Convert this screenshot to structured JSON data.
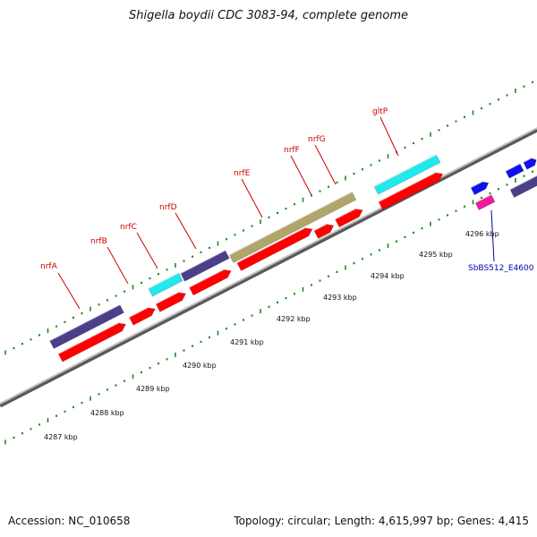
{
  "title": "Shigella boydii CDC 3083-94, complete genome",
  "footer": {
    "accession": "Accession: NC_010658",
    "summary": "Topology: circular; Length: 4,615,997 bp; Genes: 4,415"
  },
  "colors": {
    "backbone": "#888888",
    "ticks": "#1a8a1a",
    "label_red": "#cc0000",
    "label_blue": "#0000aa",
    "red": "#ff0000",
    "navy": "#4b3f8a",
    "cyan": "#22e8ee",
    "olive": "#b0a56a",
    "blue": "#1010ee",
    "magenta": "#ee1a9e"
  },
  "kbp_ticks": [
    "4287 kbp",
    "4288 kbp",
    "4289 kbp",
    "4290 kbp",
    "4291 kbp",
    "4292 kbp",
    "4293 kbp",
    "4294 kbp",
    "4295 kbp",
    "4296 kbp"
  ],
  "gene_labels": [
    {
      "name": "nrfA",
      "color": "red"
    },
    {
      "name": "nrfB",
      "color": "red"
    },
    {
      "name": "nrfC",
      "color": "red"
    },
    {
      "name": "nrfD",
      "color": "red"
    },
    {
      "name": "nrfE",
      "color": "red"
    },
    {
      "name": "nrfF",
      "color": "red"
    },
    {
      "name": "nrfG",
      "color": "red"
    },
    {
      "name": "gltP",
      "color": "red"
    },
    {
      "name": "SbBS512_E4600",
      "color": "blue"
    }
  ]
}
